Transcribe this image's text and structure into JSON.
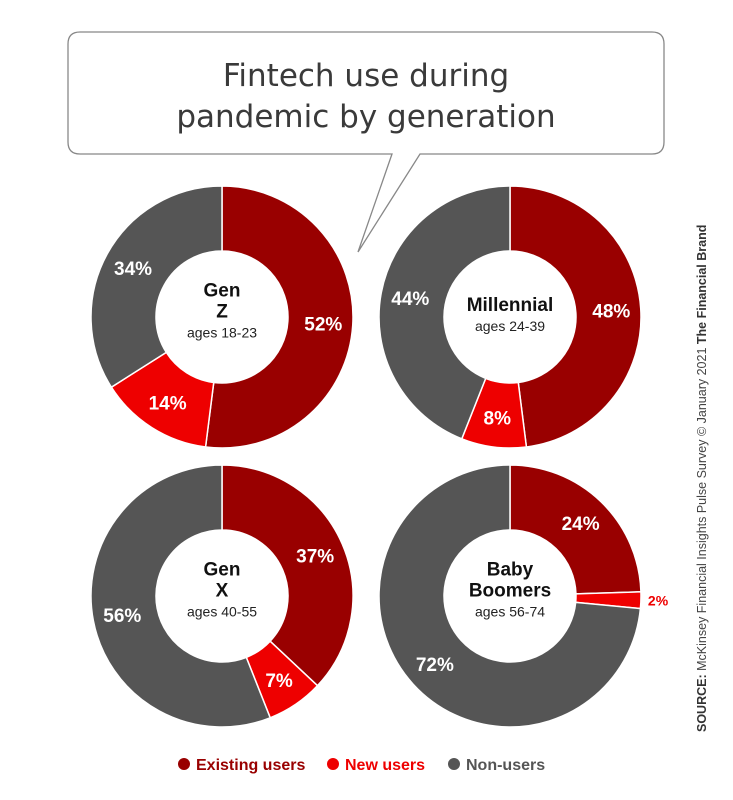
{
  "title_line1": "Fintech use during",
  "title_line2": "pandemic by generation",
  "source": {
    "label": "SOURCE:",
    "text": "McKinsey Financial Insights Pulse Survey © January 2021",
    "brand": "The Financial Brand"
  },
  "colors": {
    "existing": "#990000",
    "new": "#ee0000",
    "non": "#555555"
  },
  "legend": [
    {
      "label": "Existing users",
      "color": "#990000"
    },
    {
      "label": "New users",
      "color": "#ee0000"
    },
    {
      "label": "Non-users",
      "color": "#555555"
    }
  ],
  "chart_data": [
    {
      "type": "pie",
      "title": "Gen Z",
      "subtitle": "ages 18-23",
      "categories": [
        "Existing users",
        "New users",
        "Non-users"
      ],
      "values": [
        52,
        14,
        34
      ]
    },
    {
      "type": "pie",
      "title": "Millennial",
      "subtitle": "ages 24-39",
      "categories": [
        "Existing users",
        "New users",
        "Non-users"
      ],
      "values": [
        48,
        8,
        44
      ]
    },
    {
      "type": "pie",
      "title": "Gen X",
      "subtitle": "ages 40-55",
      "categories": [
        "Existing users",
        "New users",
        "Non-users"
      ],
      "values": [
        37,
        7,
        56
      ]
    },
    {
      "type": "pie",
      "title": "Baby Boomers",
      "subtitle": "ages 56-74",
      "categories": [
        "Existing users",
        "New users",
        "Non-users"
      ],
      "values": [
        24,
        2,
        72
      ]
    }
  ]
}
